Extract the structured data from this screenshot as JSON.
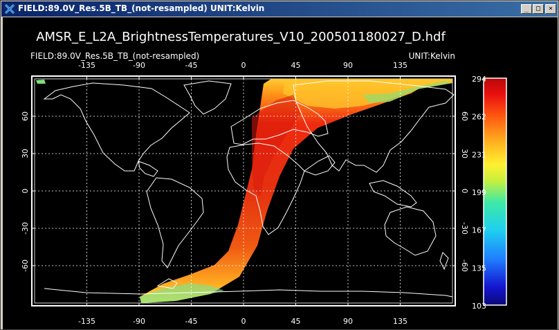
{
  "window": {
    "title": "FIELD:89.0V_Res.5B_TB_(not-resampled)  UNIT:Kelvin",
    "buttons": {
      "minimize": "_",
      "maximize": "□",
      "close": "×"
    },
    "background": "#000000"
  },
  "chart_data": {
    "type": "heatmap",
    "title": "AMSR_E_L2A_BrightnessTemperatures_V10_200501180027_D.hdf",
    "field_label": "FIELD:89.0V_Res.5B_TB_(not-resampled)",
    "unit_label": "UNIT:Kelvin",
    "projection": "cylindrical",
    "x_ticks": [
      "-135",
      "-90",
      "-45",
      "0",
      "45",
      "90",
      "135"
    ],
    "x_tick_values": [
      -135,
      -90,
      -45,
      0,
      45,
      90,
      135
    ],
    "y_ticks": [
      "60",
      "30",
      "0",
      "-30",
      "-60"
    ],
    "y_tick_values": [
      60,
      30,
      0,
      -30,
      -60
    ],
    "xlim": [
      -180,
      180
    ],
    "ylim": [
      -90,
      90
    ],
    "grid": true,
    "colorbar": {
      "labels": [
        "294",
        "262",
        "231",
        "199",
        "167",
        "135",
        "103"
      ],
      "min": 103,
      "max": 294
    },
    "swath_center_track": [
      [
        148,
        86
      ],
      [
        60,
        80
      ],
      [
        30,
        70
      ],
      [
        16,
        50
      ],
      [
        9,
        30
      ],
      [
        5,
        10
      ],
      [
        2,
        -10
      ],
      [
        -3,
        -30
      ],
      [
        -10,
        -50
      ],
      [
        -30,
        -68
      ],
      [
        -60,
        -78
      ],
      [
        -85,
        -83
      ]
    ]
  }
}
